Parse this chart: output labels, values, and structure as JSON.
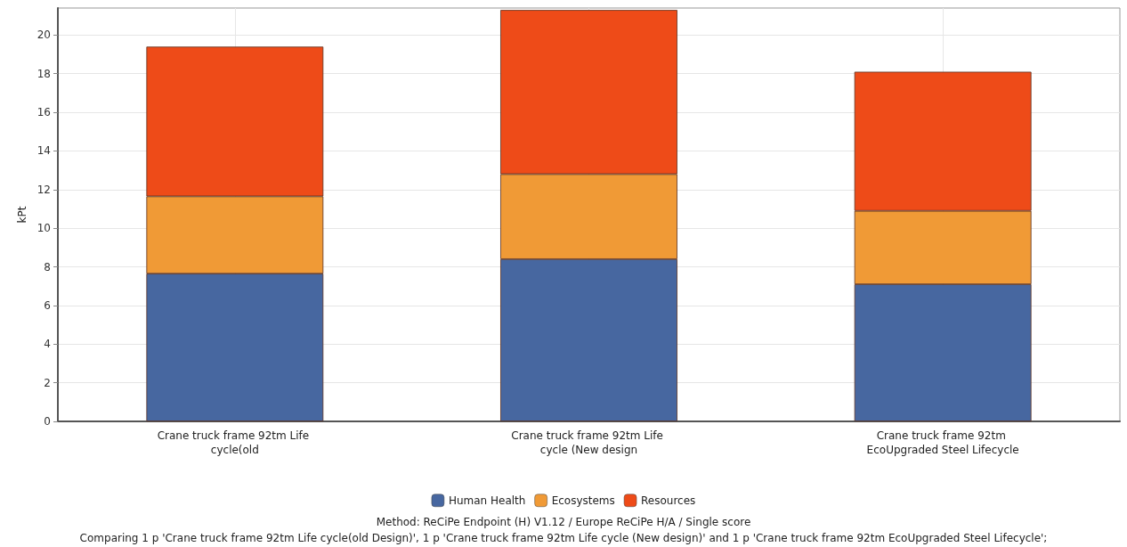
{
  "chart_data": {
    "type": "bar",
    "stacked": true,
    "ylabel": "kPt",
    "categories": [
      "Crane truck frame 92tm Life cycle(old",
      "Crane truck frame 92tm Life cycle (New design",
      "Crane truck frame 92tm EcoUpgraded Steel Lifecycle"
    ],
    "series": [
      {
        "name": "Human Health",
        "color": "#4767a0",
        "values": [
          7.65,
          8.4,
          7.1
        ]
      },
      {
        "name": "Ecosystems",
        "color": "#f09a36",
        "values": [
          4.0,
          4.4,
          3.8
        ]
      },
      {
        "name": "Resources",
        "color": "#ee4b18",
        "values": [
          7.75,
          8.5,
          7.2
        ]
      }
    ],
    "ylim": [
      0,
      21.4
    ],
    "yticks": [
      0,
      2,
      4,
      6,
      8,
      10,
      12,
      14,
      16,
      18,
      20
    ],
    "grid": true,
    "legend": "bottom",
    "annotations": [
      "Method: ReCiPe Endpoint (H) V1.12 / Europe ReCiPe H/A / Single score",
      "Comparing 1 p 'Crane truck frame 92tm Life cycle(old Design)', 1 p 'Crane truck frame 92tm Life cycle (New design)' and 1 p 'Crane truck frame 92tm EcoUpgraded Steel Lifecycle';"
    ]
  }
}
